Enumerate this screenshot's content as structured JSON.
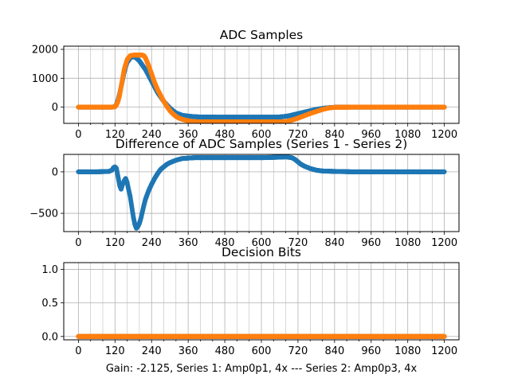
{
  "figure": {
    "xlabel": "Gain: -2.125, Series 1: Amp0p1, 4x --- Series 2: Amp0p3, 4x"
  },
  "colors": {
    "series1": "#1f77b4",
    "series2": "#ff7f0e"
  },
  "chart_data": [
    {
      "type": "scatter",
      "title": "ADC Samples",
      "xlim": [
        -48,
        1248
      ],
      "ylim": [
        -560,
        2110
      ],
      "xticks": [
        0,
        120,
        240,
        360,
        480,
        600,
        720,
        840,
        960,
        1080,
        1200
      ],
      "yticks": [
        0,
        1000,
        2000
      ],
      "xtick_labels": [
        "0",
        "120",
        "240",
        "360",
        "480",
        "600",
        "720",
        "840",
        "960",
        "1080",
        "1200"
      ],
      "ytick_labels": [
        "0",
        "1000",
        "2000"
      ],
      "grid": true,
      "series": [
        {
          "color": "#1f77b4",
          "x": [
            0,
            60,
            110,
            120,
            125,
            130,
            135,
            140,
            145,
            150,
            155,
            160,
            170,
            180,
            190,
            200,
            210,
            220,
            230,
            240,
            250,
            260,
            270,
            280,
            290,
            300,
            310,
            320,
            340,
            360,
            380,
            400,
            450,
            500,
            550,
            600,
            650,
            670,
            690,
            710,
            730,
            750,
            770,
            790,
            810,
            830,
            850,
            900,
            1000,
            1100,
            1200
          ],
          "y": [
            0,
            0,
            0,
            20,
            100,
            250,
            450,
            700,
            950,
            1200,
            1400,
            1550,
            1700,
            1750,
            1700,
            1600,
            1450,
            1300,
            1100,
            900,
            700,
            500,
            350,
            200,
            80,
            -30,
            -120,
            -200,
            -280,
            -310,
            -330,
            -340,
            -345,
            -345,
            -345,
            -345,
            -345,
            -330,
            -300,
            -250,
            -200,
            -150,
            -100,
            -60,
            -30,
            -10,
            0,
            0,
            0,
            0,
            0
          ]
        },
        {
          "color": "#ff7f0e",
          "x": [
            0,
            60,
            110,
            120,
            125,
            130,
            135,
            140,
            145,
            150,
            160,
            170,
            180,
            190,
            200,
            210,
            215,
            220,
            230,
            240,
            250,
            260,
            270,
            280,
            290,
            300,
            310,
            320,
            330,
            340,
            360,
            380,
            400,
            450,
            500,
            550,
            600,
            650,
            680,
            700,
            720,
            740,
            760,
            780,
            800,
            820,
            840,
            900,
            1000,
            1100,
            1200
          ],
          "y": [
            0,
            0,
            0,
            10,
            80,
            200,
            400,
            700,
            1000,
            1300,
            1650,
            1780,
            1800,
            1800,
            1800,
            1800,
            1780,
            1700,
            1450,
            1150,
            850,
            600,
            400,
            200,
            30,
            -120,
            -230,
            -320,
            -380,
            -420,
            -470,
            -500,
            -510,
            -510,
            -510,
            -510,
            -510,
            -510,
            -500,
            -450,
            -380,
            -300,
            -220,
            -150,
            -80,
            -30,
            -5,
            0,
            0,
            0,
            0
          ]
        }
      ]
    },
    {
      "type": "scatter",
      "title": "Difference of ADC Samples (Series 1 - Series 2)",
      "xlim": [
        -48,
        1248
      ],
      "ylim": [
        -720,
        210
      ],
      "xticks": [
        0,
        120,
        240,
        360,
        480,
        600,
        720,
        840,
        960,
        1080,
        1200
      ],
      "yticks": [
        -500,
        0
      ],
      "xtick_labels": [
        "0",
        "120",
        "240",
        "360",
        "480",
        "600",
        "720",
        "840",
        "960",
        "1080",
        "1200"
      ],
      "ytick_labels": [
        "−500",
        "0"
      ],
      "grid": true,
      "series": [
        {
          "color": "#1f77b4",
          "x": [
            0,
            60,
            100,
            110,
            115,
            120,
            125,
            130,
            135,
            140,
            145,
            150,
            155,
            160,
            165,
            170,
            175,
            180,
            185,
            190,
            195,
            200,
            205,
            210,
            215,
            220,
            230,
            240,
            250,
            260,
            270,
            280,
            290,
            300,
            320,
            340,
            360,
            380,
            400,
            420,
            450,
            500,
            550,
            600,
            650,
            680,
            690,
            700,
            710,
            720,
            730,
            740,
            760,
            780,
            800,
            840,
            900,
            1000,
            1100,
            1200
          ],
          "y": [
            0,
            0,
            5,
            20,
            50,
            60,
            40,
            -60,
            -160,
            -210,
            -150,
            -110,
            -80,
            -130,
            -220,
            -300,
            -420,
            -540,
            -630,
            -680,
            -660,
            -620,
            -560,
            -480,
            -400,
            -330,
            -230,
            -150,
            -80,
            -20,
            30,
            60,
            90,
            110,
            140,
            160,
            165,
            170,
            170,
            170,
            170,
            170,
            170,
            170,
            175,
            180,
            175,
            170,
            150,
            120,
            90,
            70,
            40,
            20,
            10,
            5,
            0,
            0,
            0,
            0
          ]
        }
      ]
    },
    {
      "type": "scatter",
      "title": "Decision Bits",
      "xlim": [
        -48,
        1248
      ],
      "ylim": [
        -0.05,
        1.1
      ],
      "xticks": [
        0,
        120,
        240,
        360,
        480,
        600,
        720,
        840,
        960,
        1080,
        1200
      ],
      "yticks": [
        0.0,
        0.5,
        1.0
      ],
      "xtick_labels": [
        "0",
        "120",
        "240",
        "360",
        "480",
        "600",
        "720",
        "840",
        "960",
        "1080",
        "1200"
      ],
      "ytick_labels": [
        "0.0",
        "0.5",
        "1.0"
      ],
      "grid": true,
      "series": [
        {
          "color": "#1f77b4",
          "x": [
            0,
            1200
          ],
          "y": [
            0,
            0
          ]
        },
        {
          "color": "#ff7f0e",
          "x": [
            0,
            1200
          ],
          "y": [
            0,
            0
          ]
        }
      ]
    }
  ]
}
